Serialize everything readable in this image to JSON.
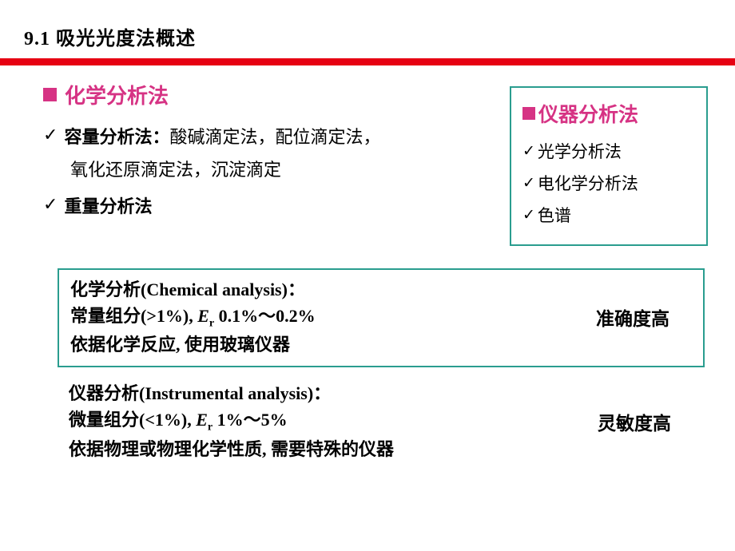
{
  "slide": {
    "title": "9.1  吸光光度法概述",
    "colors": {
      "red_bar": "#e60012",
      "pink": "#d63384",
      "teal": "#2a9d8f",
      "text": "#000000",
      "bg": "#ffffff"
    },
    "left": {
      "heading": "化学分析法",
      "item1_bold": "容量分析法：",
      "item1_rest": "酸碱滴定法，配位滴定法，",
      "item1_line2": "氧化还原滴定法，沉淀滴定",
      "item2": "重量分析法"
    },
    "right_box": {
      "heading": "仪器分析法",
      "items": [
        "光学分析法",
        "电化学分析法",
        "色谱"
      ]
    },
    "box1": {
      "line1": "化学分析(Chemical analysis)：",
      "line2_a": "常量组分(>1%), ",
      "line2_er": "E",
      "line2_sub": "r",
      "line2_b": " 0.1%～0.2%",
      "line3": "依据化学反应, 使用玻璃仪器",
      "right": "准确度高"
    },
    "box2": {
      "line1": "仪器分析(Instrumental analysis)：",
      "line2_a": "微量组分(<1%), ",
      "line2_er": "E",
      "line2_sub": "r",
      "line2_b": " 1%～5%",
      "line3": "依据物理或物理化学性质, 需要特殊的仪器",
      "right": "灵敏度高"
    }
  }
}
